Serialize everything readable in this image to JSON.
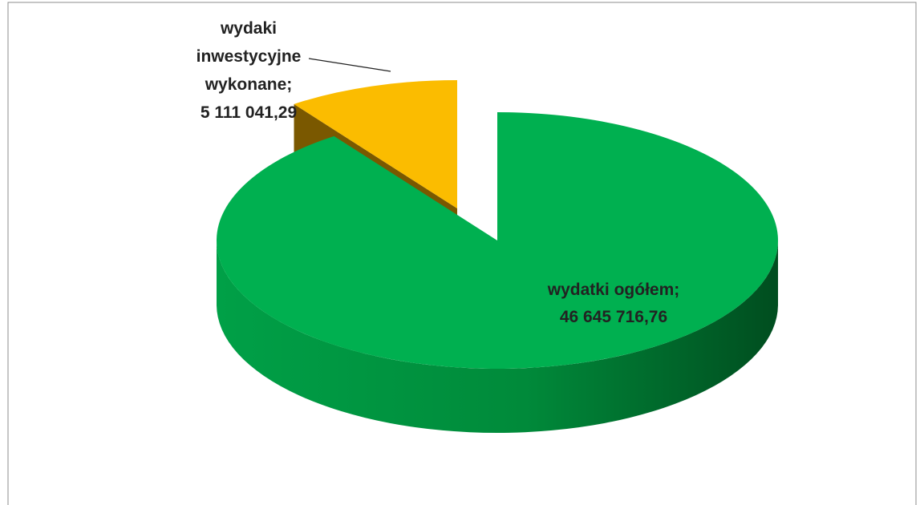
{
  "chart_data": {
    "type": "pie",
    "categories": [
      "wydaki inwestycyjne wykonane",
      "wydatki ogółem"
    ],
    "values": [
      5111041.29,
      46645716.76
    ],
    "value_labels": [
      "5 111 041,29",
      "46 645 716,76"
    ],
    "label_separator": ";",
    "colors": [
      "#fbbc00",
      "#00b050"
    ]
  }
}
